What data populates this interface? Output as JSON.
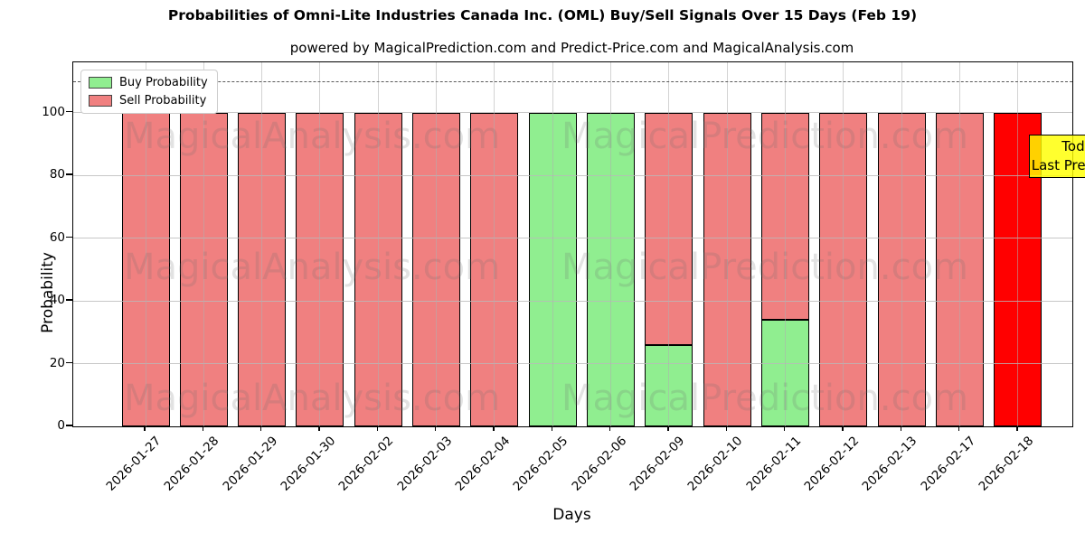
{
  "title": "Probabilities of Omni-Lite Industries Canada Inc. (OML) Buy/Sell Signals Over 15 Days (Feb 19)",
  "subtitle": "powered by MagicalPrediction.com and Predict-Price.com and MagicalAnalysis.com",
  "chart_data": {
    "type": "bar",
    "stacked": true,
    "categories": [
      "2026-01-27",
      "2026-01-28",
      "2026-01-29",
      "2026-01-30",
      "2026-02-02",
      "2026-02-03",
      "2026-02-04",
      "2026-02-05",
      "2026-02-06",
      "2026-02-09",
      "2026-02-10",
      "2026-02-11",
      "2026-02-12",
      "2026-02-13",
      "2026-02-17",
      "2026-02-18"
    ],
    "series": [
      {
        "name": "Buy Probability",
        "color": "#90ee90",
        "values": [
          0,
          0,
          0,
          0,
          0,
          0,
          0,
          100,
          100,
          26,
          0,
          34,
          0,
          0,
          0,
          0
        ]
      },
      {
        "name": "Sell Probability",
        "color": "#f08080",
        "values": [
          100,
          100,
          100,
          100,
          100,
          100,
          100,
          0,
          0,
          74,
          100,
          66,
          100,
          100,
          100,
          100
        ]
      }
    ],
    "today_index": 15,
    "today_color": "#ff0000",
    "xlabel": "Days",
    "ylabel": "Probability",
    "yticks": [
      0,
      20,
      40,
      60,
      80,
      100
    ],
    "ylim": [
      0,
      116
    ],
    "dashed_line_y": 110,
    "grid": true,
    "legend_position": "upper left"
  },
  "annotation": {
    "lines": [
      "Today",
      "Last Prediction"
    ],
    "bg_color": "#ffff00"
  },
  "watermarks": {
    "left_text": "MagicalAnalysis.com",
    "right_text": "MagicalPrediction.com"
  }
}
